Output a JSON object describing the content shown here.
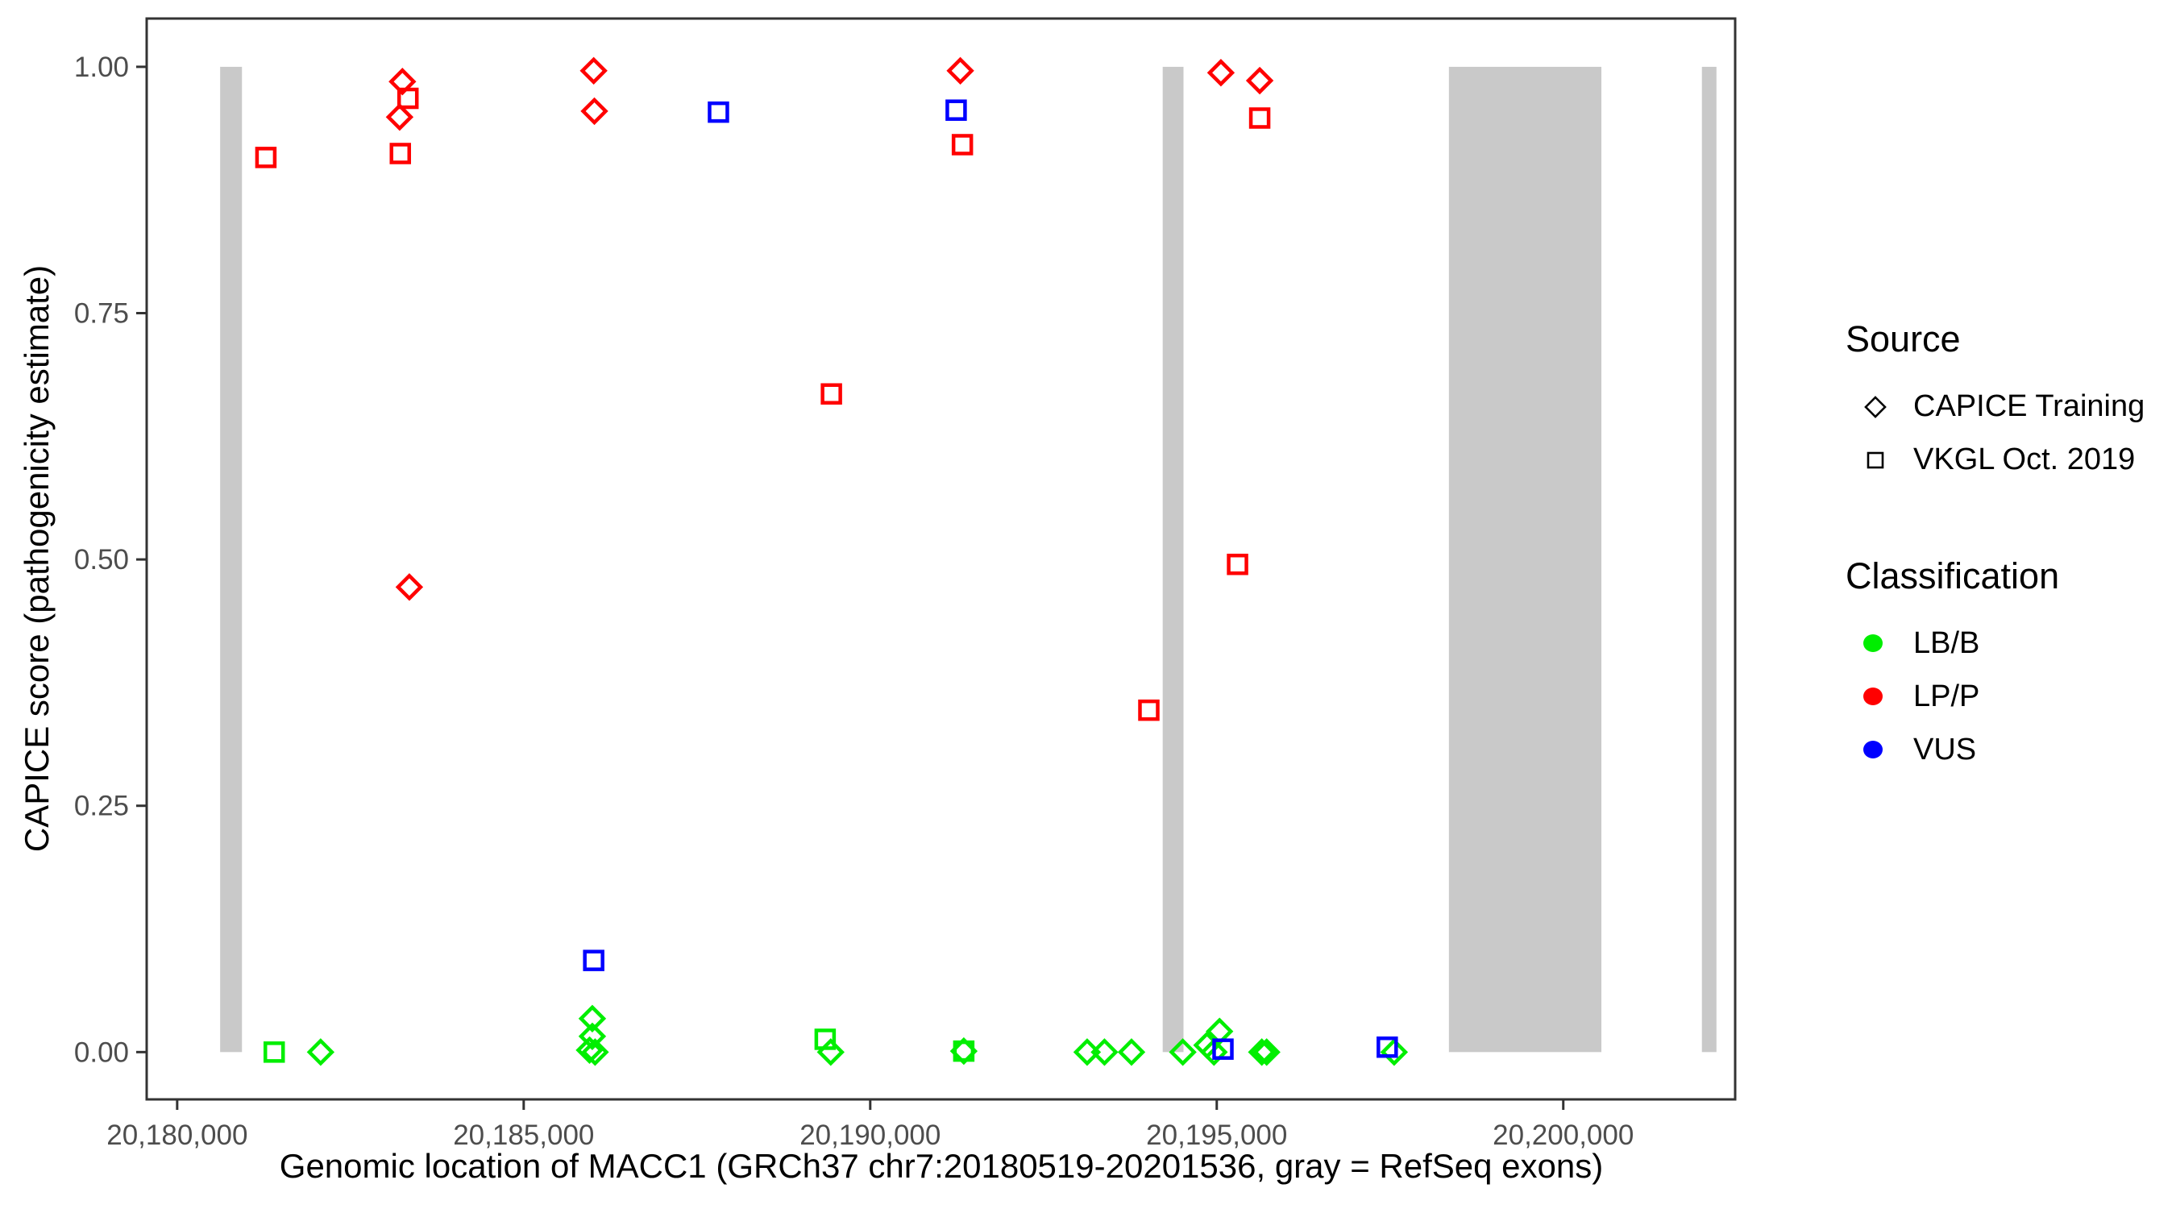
{
  "legend": {
    "source_title": "Source",
    "source_items": [
      {
        "label": "CAPICE Training",
        "marker": "diamond"
      },
      {
        "label": "VKGL Oct. 2019",
        "marker": "square"
      }
    ],
    "classification_title": "Classification",
    "classification_items": [
      {
        "label": "LB/B",
        "color": "#00EE00"
      },
      {
        "label": "LP/P",
        "color": "#FF0000"
      },
      {
        "label": "VUS",
        "color": "#0000FF"
      }
    ]
  },
  "chart_data": {
    "type": "scatter",
    "title": "",
    "xlabel": "Genomic location of MACC1 (GRCh37 chr7:20180519-20201536, gray = RefSeq exons)",
    "ylabel": "CAPICE score (pathogenicity estimate)",
    "xlim": [
      20179560,
      20202480
    ],
    "ylim": [
      -0.048,
      1.049
    ],
    "grid": false,
    "legend_position": "right",
    "x_ticks": [
      {
        "value": 20180000,
        "label": "20,180,000"
      },
      {
        "value": 20185000,
        "label": "20,185,000"
      },
      {
        "value": 20190000,
        "label": "20,190,000"
      },
      {
        "value": 20195000,
        "label": "20,195,000"
      },
      {
        "value": 20200000,
        "label": "20,200,000"
      }
    ],
    "y_ticks": [
      {
        "value": 0.0,
        "label": "0.00"
      },
      {
        "value": 0.25,
        "label": "0.25"
      },
      {
        "value": 0.5,
        "label": "0.50"
      },
      {
        "value": 0.75,
        "label": "0.75"
      },
      {
        "value": 1.0,
        "label": "1.00"
      }
    ],
    "exon_color": "#C9C9C9",
    "refseq_exons": [
      {
        "start": 20180620,
        "end": 20180935
      },
      {
        "start": 20194220,
        "end": 20194520
      },
      {
        "start": 20198350,
        "end": 20200550
      },
      {
        "start": 20202000,
        "end": 20202210
      }
    ],
    "marker_shapes": {
      "CAPICE Training": "diamond",
      "VKGL Oct. 2019": "square"
    },
    "class_colors": {
      "LB/B": "#00EE00",
      "LP/P": "#FF0000",
      "VUS": "#0000FF"
    },
    "points": [
      {
        "pos": 20183250,
        "score": 0.985,
        "source": "CAPICE Training",
        "classification": "LP/P"
      },
      {
        "pos": 20183210,
        "score": 0.949,
        "source": "CAPICE Training",
        "classification": "LP/P"
      },
      {
        "pos": 20183350,
        "score": 0.472,
        "source": "CAPICE Training",
        "classification": "LP/P"
      },
      {
        "pos": 20186010,
        "score": 0.996,
        "source": "CAPICE Training",
        "classification": "LP/P"
      },
      {
        "pos": 20186020,
        "score": 0.955,
        "source": "CAPICE Training",
        "classification": "LP/P"
      },
      {
        "pos": 20191300,
        "score": 0.996,
        "source": "CAPICE Training",
        "classification": "LP/P"
      },
      {
        "pos": 20195060,
        "score": 0.994,
        "source": "CAPICE Training",
        "classification": "LP/P"
      },
      {
        "pos": 20195620,
        "score": 0.986,
        "source": "CAPICE Training",
        "classification": "LP/P"
      },
      {
        "pos": 20181280,
        "score": 0.908,
        "source": "VKGL Oct. 2019",
        "classification": "LP/P"
      },
      {
        "pos": 20183330,
        "score": 0.968,
        "source": "VKGL Oct. 2019",
        "classification": "LP/P"
      },
      {
        "pos": 20183220,
        "score": 0.912,
        "source": "VKGL Oct. 2019",
        "classification": "LP/P"
      },
      {
        "pos": 20189440,
        "score": 0.668,
        "source": "VKGL Oct. 2019",
        "classification": "LP/P"
      },
      {
        "pos": 20191330,
        "score": 0.921,
        "source": "VKGL Oct. 2019",
        "classification": "LP/P"
      },
      {
        "pos": 20194020,
        "score": 0.347,
        "source": "VKGL Oct. 2019",
        "classification": "LP/P"
      },
      {
        "pos": 20195300,
        "score": 0.495,
        "source": "VKGL Oct. 2019",
        "classification": "LP/P"
      },
      {
        "pos": 20195620,
        "score": 0.948,
        "source": "VKGL Oct. 2019",
        "classification": "LP/P"
      },
      {
        "pos": 20182070,
        "score": 0.0,
        "source": "CAPICE Training",
        "classification": "LB/B"
      },
      {
        "pos": 20185990,
        "score": 0.034,
        "source": "CAPICE Training",
        "classification": "LB/B"
      },
      {
        "pos": 20185990,
        "score": 0.016,
        "source": "CAPICE Training",
        "classification": "LB/B"
      },
      {
        "pos": 20185950,
        "score": 0.002,
        "source": "CAPICE Training",
        "classification": "LB/B"
      },
      {
        "pos": 20186030,
        "score": 0.0,
        "source": "CAPICE Training",
        "classification": "LB/B"
      },
      {
        "pos": 20189430,
        "score": 0.0,
        "source": "CAPICE Training",
        "classification": "LB/B"
      },
      {
        "pos": 20191350,
        "score": 0.001,
        "source": "CAPICE Training",
        "classification": "LB/B"
      },
      {
        "pos": 20193130,
        "score": 0.0,
        "source": "CAPICE Training",
        "classification": "LB/B"
      },
      {
        "pos": 20193380,
        "score": 0.0,
        "source": "CAPICE Training",
        "classification": "LB/B"
      },
      {
        "pos": 20193770,
        "score": 0.0,
        "source": "CAPICE Training",
        "classification": "LB/B"
      },
      {
        "pos": 20194510,
        "score": 0.0,
        "source": "CAPICE Training",
        "classification": "LB/B"
      },
      {
        "pos": 20195040,
        "score": 0.021,
        "source": "CAPICE Training",
        "classification": "LB/B"
      },
      {
        "pos": 20194860,
        "score": 0.007,
        "source": "CAPICE Training",
        "classification": "LB/B"
      },
      {
        "pos": 20194960,
        "score": 0.0,
        "source": "CAPICE Training",
        "classification": "LB/B"
      },
      {
        "pos": 20195650,
        "score": 0.0,
        "source": "CAPICE Training",
        "classification": "LB/B"
      },
      {
        "pos": 20195720,
        "score": 0.0,
        "source": "CAPICE Training",
        "classification": "LB/B"
      },
      {
        "pos": 20197560,
        "score": 0.0,
        "source": "CAPICE Training",
        "classification": "LB/B"
      },
      {
        "pos": 20181400,
        "score": 0.0,
        "source": "VKGL Oct. 2019",
        "classification": "LB/B"
      },
      {
        "pos": 20189350,
        "score": 0.013,
        "source": "VKGL Oct. 2019",
        "classification": "LB/B"
      },
      {
        "pos": 20191350,
        "score": 0.001,
        "source": "VKGL Oct. 2019",
        "classification": "LB/B"
      },
      {
        "pos": 20187810,
        "score": 0.954,
        "source": "VKGL Oct. 2019",
        "classification": "VUS"
      },
      {
        "pos": 20191240,
        "score": 0.956,
        "source": "VKGL Oct. 2019",
        "classification": "VUS"
      },
      {
        "pos": 20186010,
        "score": 0.093,
        "source": "VKGL Oct. 2019",
        "classification": "VUS"
      },
      {
        "pos": 20195090,
        "score": 0.003,
        "source": "VKGL Oct. 2019",
        "classification": "VUS"
      },
      {
        "pos": 20197460,
        "score": 0.005,
        "source": "VKGL Oct. 2019",
        "classification": "VUS"
      }
    ]
  }
}
